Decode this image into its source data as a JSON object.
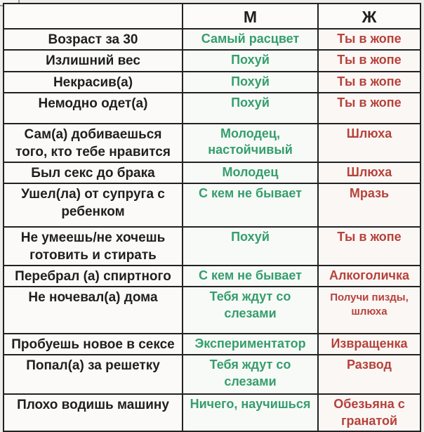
{
  "colors": {
    "male_text": "#359e6c",
    "female_text": "#b5423a",
    "label_text": "#1f1f1f",
    "border": "#222222",
    "background": "#fcfaf8"
  },
  "header": {
    "behavior": "",
    "male": "М",
    "female": "Ж"
  },
  "rows": [
    {
      "label": "Возраст за 30",
      "male": "Самый расцвет",
      "female": "Ты в жопе"
    },
    {
      "label": "Излишний вес",
      "male": "Похуй",
      "female": "Ты в жопе"
    },
    {
      "label": "Некрасив(а)",
      "male": "Похуй",
      "female": "Ты в жопе"
    },
    {
      "label": "Немодно одет(а)",
      "male": "Похуй",
      "female": "Ты в жопе"
    },
    {
      "label": "Сам(а) добиваешься того, кто тебе нравится",
      "male": "Молодец, настойчивый",
      "female": "Шлюха"
    },
    {
      "label": "Был секс до брака",
      "male": "Молодец",
      "female": "Шлюха"
    },
    {
      "label": "Ушел(ла) от супруга с ребенком",
      "male": "С кем не бывает",
      "female": "Мразь"
    },
    {
      "label": "Не умеешь/не хочешь готовить и стирать",
      "male": "Похуй",
      "female": "Ты в жопе"
    },
    {
      "label": "Перебрал (а) спиртного",
      "male": "С кем не бывает",
      "female": "Алкоголичка"
    },
    {
      "label": "Не ночевал(а) дома",
      "male": "Тебя ждут со слезами",
      "female": "Получи пизды, шлюха"
    },
    {
      "label": "Пробуешь новое в сексе",
      "male": "Экспериментатор",
      "female": "Извращенка"
    },
    {
      "label": "Попал(а) за решетку",
      "male": "Тебя ждут со слезами",
      "female": "Развод"
    },
    {
      "label": "Плохо водишь машину",
      "male": "Ничего, научишься",
      "female": "Обезьяна с гранатой"
    }
  ]
}
